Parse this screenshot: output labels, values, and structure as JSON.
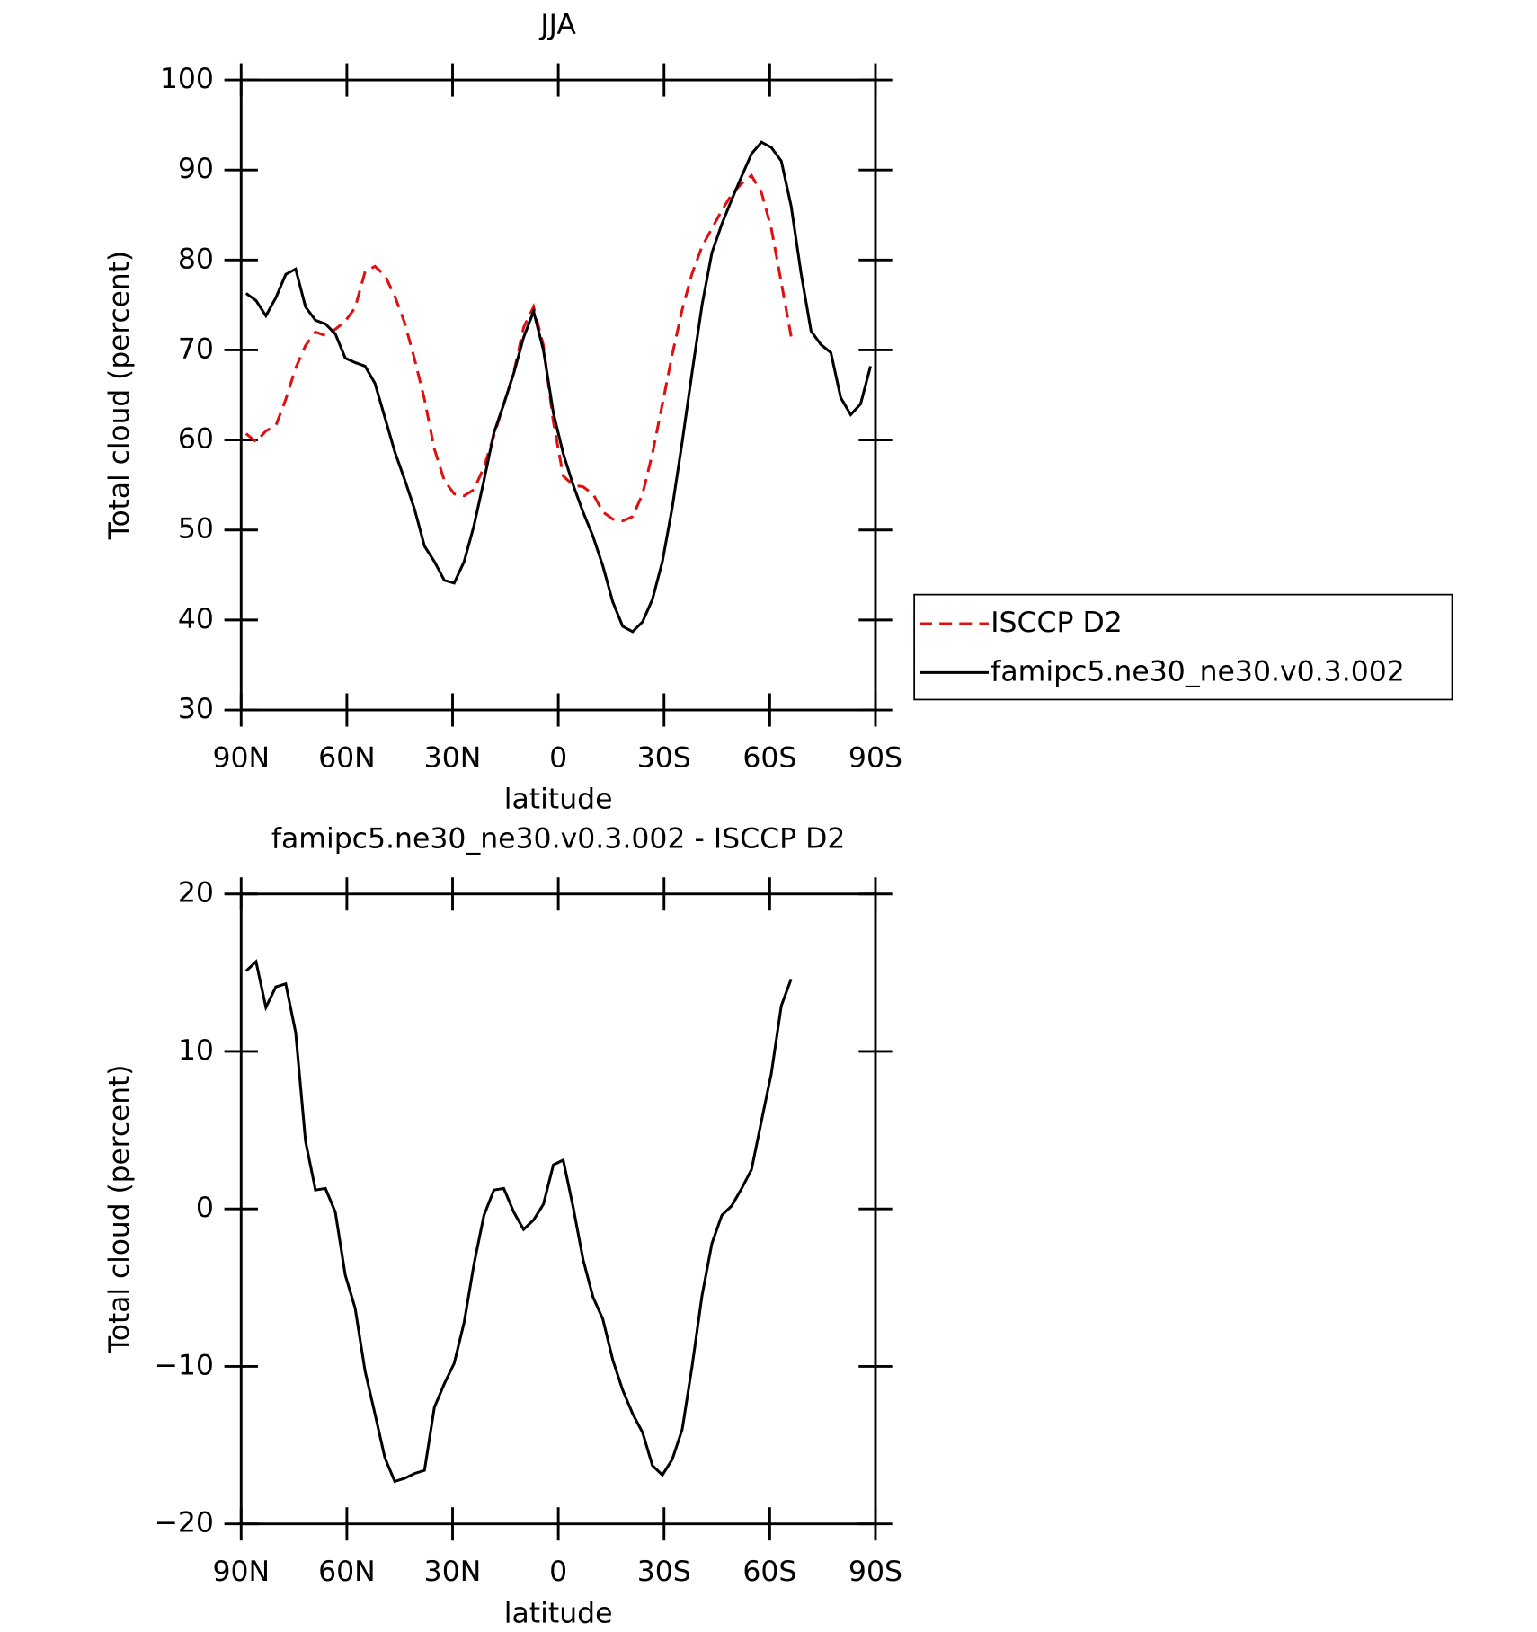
{
  "chart_data": [
    {
      "type": "line",
      "title": "JJA",
      "xlabel": "latitude",
      "ylabel": "Total cloud (percent)",
      "x": [
        88.59375,
        85.78125,
        82.96875,
        80.15625,
        77.34375,
        74.53125,
        71.71875,
        68.90625,
        66.09375,
        63.28125,
        60.46875,
        57.65625,
        54.84375,
        52.03125,
        49.21875,
        46.40625,
        43.59375,
        40.78125,
        37.96875,
        35.15625,
        32.34375,
        29.53125,
        26.71875,
        23.90625,
        21.09375,
        18.28125,
        15.46875,
        12.65625,
        9.84375,
        7.03125,
        4.21875,
        1.40625,
        -1.40625,
        -4.21875,
        -7.03125,
        -9.84375,
        -12.65625,
        -15.46875,
        -18.28125,
        -21.09375,
        -23.90625,
        -26.71875,
        -29.53125,
        -32.34375,
        -35.15625,
        -37.96875,
        -40.78125,
        -43.59375,
        -46.40625,
        -49.21875,
        -52.03125,
        -54.84375,
        -57.65625,
        -60.46875,
        -63.28125,
        -66.09375,
        -68.90625,
        -71.71875,
        -74.53125,
        -77.34375,
        -80.15625,
        -82.96875,
        -85.78125,
        -88.59375
      ],
      "series": [
        {
          "name": "ISCCP D2",
          "color": "#e01010",
          "style": "dashed",
          "values": [
            60.7,
            59.8,
            61.0,
            61.6,
            64.5,
            68.0,
            70.5,
            72.0,
            71.6,
            72.3,
            73.2,
            74.7,
            78.7,
            79.3,
            78.3,
            76.0,
            73.0,
            69.0,
            64.5,
            59.0,
            55.5,
            54.0,
            53.8,
            54.5,
            57.0,
            60.5,
            64.0,
            67.5,
            72.5,
            74.8,
            70.5,
            62.0,
            56.0,
            55.0,
            54.8,
            54.0,
            52.0,
            51.2,
            51.0,
            51.5,
            54.0,
            58.5,
            64.0,
            69.5,
            74.5,
            78.5,
            81.5,
            83.5,
            85.5,
            87.3,
            88.5,
            89.4,
            87.5,
            83.5,
            77.5,
            71.5,
            null,
            null,
            null,
            null,
            null,
            null,
            null,
            null
          ]
        },
        {
          "name": "famipc5.ne30_ne30.v0.3.002",
          "color": "#000000",
          "style": "solid",
          "values": [
            76.3,
            75.5,
            73.8,
            75.8,
            78.4,
            79.0,
            74.8,
            73.3,
            72.9,
            71.8,
            69.1,
            68.6,
            68.2,
            66.3,
            62.5,
            58.7,
            55.6,
            52.3,
            48.2,
            46.5,
            44.4,
            44.1,
            46.5,
            50.5,
            55.5,
            60.8,
            64.0,
            67.4,
            71.4,
            74.3,
            70.0,
            63.0,
            58.5,
            55.0,
            52.0,
            49.3,
            46.0,
            42.0,
            39.3,
            38.7,
            39.8,
            42.3,
            46.5,
            52.5,
            59.8,
            67.5,
            75.0,
            80.8,
            84.0,
            86.7,
            89.3,
            91.8,
            93.1,
            92.5,
            91.0,
            86.0,
            78.5,
            72.1,
            70.6,
            69.7,
            64.7,
            62.8,
            64.0,
            68.2
          ]
        }
      ],
      "xlim": [
        90,
        -90
      ],
      "xticks": [
        {
          "value": 90,
          "label": "90N"
        },
        {
          "value": 60,
          "label": "60N"
        },
        {
          "value": 30,
          "label": "30N"
        },
        0,
        {
          "value": -30,
          "label": "30S"
        },
        {
          "value": -60,
          "label": "60S"
        },
        {
          "value": -90,
          "label": "90S"
        }
      ],
      "ylim": [
        30,
        100
      ],
      "yticks": [
        30,
        40,
        50,
        60,
        70,
        80,
        90,
        100
      ],
      "legend": "right"
    },
    {
      "type": "line",
      "title": "famipc5.ne30_ne30.v0.3.002 - ISCCP D2",
      "xlabel": "latitude",
      "ylabel": "Total cloud (percent)",
      "x": [
        88.59375,
        85.78125,
        82.96875,
        80.15625,
        77.34375,
        74.53125,
        71.71875,
        68.90625,
        66.09375,
        63.28125,
        60.46875,
        57.65625,
        54.84375,
        52.03125,
        49.21875,
        46.40625,
        43.59375,
        40.78125,
        37.96875,
        35.15625,
        32.34375,
        29.53125,
        26.71875,
        23.90625,
        21.09375,
        18.28125,
        15.46875,
        12.65625,
        9.84375,
        7.03125,
        4.21875,
        1.40625,
        -1.40625,
        -4.21875,
        -7.03125,
        -9.84375,
        -12.65625,
        -15.46875,
        -18.28125,
        -21.09375,
        -23.90625,
        -26.71875,
        -29.53125,
        -32.34375,
        -35.15625,
        -37.96875,
        -40.78125,
        -43.59375,
        -46.40625,
        -49.21875,
        -52.03125,
        -54.84375,
        -57.65625,
        -60.46875,
        -63.28125,
        -66.09375,
        -68.90625,
        -71.71875,
        -74.53125,
        -77.34375,
        -80.15625,
        -82.96875,
        -85.78125,
        -88.59375
      ],
      "series": [
        {
          "color": "#000000",
          "style": "solid",
          "values": [
            15.1,
            15.7,
            12.8,
            14.1,
            14.3,
            11.2,
            4.3,
            1.2,
            1.3,
            -0.2,
            -4.2,
            -6.3,
            -10.3,
            -13.0,
            -15.8,
            -17.3,
            -17.1,
            -16.8,
            -16.6,
            -12.6,
            -11.1,
            -9.8,
            -7.2,
            -3.5,
            -0.4,
            1.2,
            1.3,
            -0.2,
            -1.3,
            -0.7,
            0.3,
            2.8,
            3.1,
            0.1,
            -3.2,
            -5.6,
            -7.0,
            -9.6,
            -11.5,
            -13.0,
            -14.2,
            -16.3,
            -16.9,
            -15.9,
            -14.0,
            -10.0,
            -5.5,
            -2.2,
            -0.4,
            0.2,
            1.3,
            2.5,
            5.6,
            8.6,
            12.9,
            14.6,
            null,
            null,
            null,
            null,
            null,
            null,
            null,
            null
          ]
        }
      ],
      "xlim": [
        90,
        -90
      ],
      "xticks": [
        {
          "value": 90,
          "label": "90N"
        },
        {
          "value": 60,
          "label": "60N"
        },
        {
          "value": 30,
          "label": "30N"
        },
        0,
        {
          "value": -30,
          "label": "30S"
        },
        {
          "value": -60,
          "label": "60S"
        },
        {
          "value": -90,
          "label": "90S"
        }
      ],
      "ylim": [
        -20,
        20
      ],
      "yticks": [
        {
          "value": -20,
          "label": "−20"
        },
        {
          "value": -10,
          "label": "−10"
        },
        0,
        10,
        20
      ]
    }
  ]
}
